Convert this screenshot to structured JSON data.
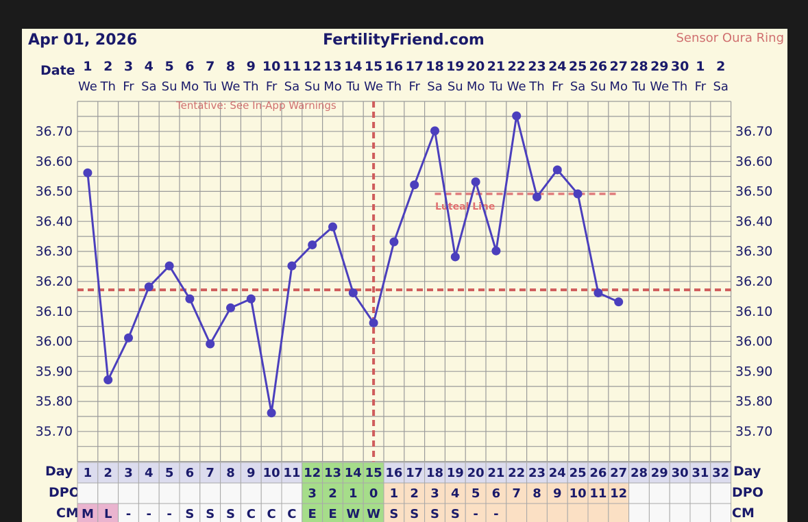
{
  "header": {
    "date": "Apr 01, 2026",
    "site": "FertilityFriend.com",
    "sensor": "Sensor Oura Ring"
  },
  "labels": {
    "date_row": "Date",
    "day_row": "Day",
    "dpo_row": "DPO",
    "cm_row": "CM",
    "tentative": "Tentative: See In-App Warnings",
    "luteal": "Luteal Line"
  },
  "dates": [
    "1",
    "2",
    "3",
    "4",
    "5",
    "6",
    "7",
    "8",
    "9",
    "10",
    "11",
    "12",
    "13",
    "14",
    "15",
    "16",
    "17",
    "18",
    "19",
    "20",
    "21",
    "22",
    "23",
    "24",
    "25",
    "26",
    "27",
    "28",
    "29",
    "30",
    "1",
    "2"
  ],
  "weekdays": [
    "We",
    "Th",
    "Fr",
    "Sa",
    "Su",
    "Mo",
    "Tu",
    "We",
    "Th",
    "Fr",
    "Sa",
    "Su",
    "Mo",
    "Tu",
    "We",
    "Th",
    "Fr",
    "Sa",
    "Su",
    "Mo",
    "Tu",
    "We",
    "Th",
    "Fr",
    "Sa",
    "Su",
    "Mo",
    "Tu",
    "We",
    "Th",
    "Fr",
    "Sa"
  ],
  "cycle_days": [
    "1",
    "2",
    "3",
    "4",
    "5",
    "6",
    "7",
    "8",
    "9",
    "10",
    "11",
    "12",
    "13",
    "14",
    "15",
    "16",
    "17",
    "18",
    "19",
    "20",
    "21",
    "22",
    "23",
    "24",
    "25",
    "26",
    "27",
    "28",
    "29",
    "30",
    "31",
    "32"
  ],
  "dpo": [
    "",
    "",
    "",
    "",
    "",
    "",
    "",
    "",
    "",
    "",
    "",
    "3",
    "2",
    "1",
    "0",
    "1",
    "2",
    "3",
    "4",
    "5",
    "6",
    "7",
    "8",
    "9",
    "10",
    "11",
    "12",
    "",
    "",
    "",
    "",
    ""
  ],
  "cm": [
    "M",
    "L",
    "-",
    "-",
    "-",
    "S",
    "S",
    "S",
    "C",
    "C",
    "C",
    "E",
    "E",
    "W",
    "W",
    "S",
    "S",
    "S",
    "S",
    "-",
    "-",
    "",
    "",
    "",
    "",
    "",
    "",
    "",
    "",
    "",
    "",
    ""
  ],
  "colors": {
    "line": "#4b3fbd",
    "coverline": "#cf5c5c",
    "grid": "#9a9a9a",
    "background": "#fbf8e0",
    "fertile_cell": "#a6dd8a",
    "luteal_cell": "#fbe0c4",
    "menses_cell": "#eab4cf",
    "day_cell": "#dcdcee"
  },
  "chart_data": {
    "type": "line",
    "xlabel": "Day",
    "x": [
      1,
      2,
      3,
      4,
      5,
      6,
      7,
      8,
      9,
      10,
      11,
      12,
      13,
      14,
      15,
      16,
      17,
      18,
      19,
      20,
      21,
      22,
      23,
      24,
      25,
      26,
      27
    ],
    "series": [
      {
        "values": [
          36.56,
          35.87,
          36.01,
          36.18,
          36.25,
          36.14,
          35.99,
          36.11,
          36.14,
          35.76,
          36.25,
          36.32,
          36.38,
          36.16,
          36.06,
          36.33,
          36.52,
          36.7,
          36.28,
          36.53,
          36.3,
          36.75,
          36.48,
          36.57,
          36.49,
          36.16,
          36.13
        ]
      }
    ],
    "yticks": [
      "36.70",
      "36.60",
      "36.50",
      "36.40",
      "36.30",
      "36.20",
      "36.10",
      "36.00",
      "35.90",
      "35.80",
      "35.70"
    ],
    "ylim": [
      35.65,
      36.8
    ],
    "coverline": 36.17,
    "luteal_line": 36.49,
    "luteal_line_range": [
      18,
      27
    ],
    "ovulation_day": 15,
    "grid": true
  }
}
